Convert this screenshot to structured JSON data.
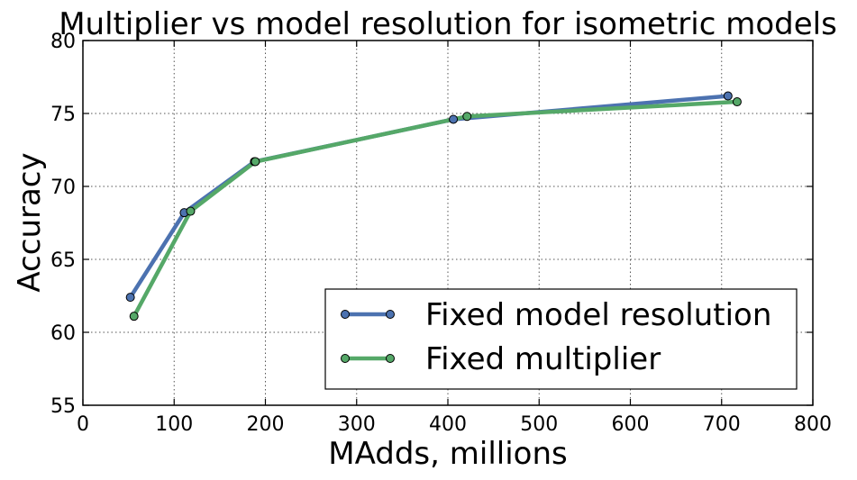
{
  "chart_data": {
    "type": "line",
    "title": "Multiplier vs model resolution for isometric models",
    "xlabel": "MAdds, millions",
    "ylabel": "Accuracy",
    "xlim": [
      0,
      800
    ],
    "ylim": [
      55,
      80
    ],
    "xticks": [
      "0",
      "100",
      "200",
      "300",
      "400",
      "500",
      "600",
      "700",
      "800"
    ],
    "yticks": [
      "55",
      "60",
      "65",
      "70",
      "75",
      "80"
    ],
    "grid": true,
    "legend_position": "lower-right",
    "series": [
      {
        "name": "Fixed model resolution",
        "color": "#4c72b0",
        "points": [
          [
            52,
            62.4
          ],
          [
            111,
            68.2
          ],
          [
            188,
            71.7
          ],
          [
            406,
            74.6
          ],
          [
            707,
            76.2
          ]
        ]
      },
      {
        "name": "Fixed multiplier",
        "color": "#55a868",
        "points": [
          [
            56,
            61.1
          ],
          [
            118,
            68.3
          ],
          [
            189,
            71.7
          ],
          [
            421,
            74.8
          ],
          [
            717,
            75.8
          ]
        ]
      }
    ]
  }
}
